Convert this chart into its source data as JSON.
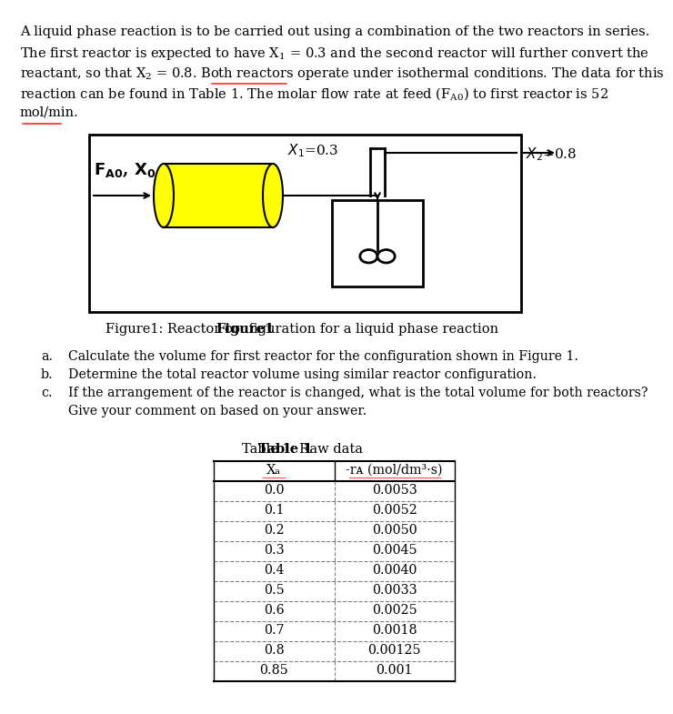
{
  "paragraph": "A liquid phase reaction is to be carried out using a combination of the two reactors in series. The first reactor is expected to have X₁ = 0.3 and the second reactor will further convert the reactant, so that X₂ = 0.8. Both reactors operate under isothermal conditions. The data for this reaction can be found in Table 1. The molar flow rate at feed (Fᴀ₀) to first reactor is 52 mol/min.",
  "figure_caption": "Figure1: Reactor configuration for a liquid phase reaction",
  "questions": [
    "a.\tCalculate the volume for first reactor for the configuration shown in Figure 1.",
    "b.\tDetermine the total reactor volume using similar reactor configuration.",
    "c.\tIf the arrangement of the reactor is changed, what is the total volume for both reactors?\n\tGive your comment on based on your answer."
  ],
  "table_title": "Table 1: Raw data",
  "col1_header": "Xₐ",
  "col2_header": "-rᴀ (mol/dm³·s)",
  "xa_values": [
    "0.0",
    "0.1",
    "0.2",
    "0.3",
    "0.4",
    "0.5",
    "0.6",
    "0.7",
    "0.8",
    "0.85"
  ],
  "ra_values": [
    "0.0053",
    "0.0052",
    "0.0050",
    "0.0045",
    "0.0040",
    "0.0033",
    "0.0025",
    "0.0018",
    "0.00125",
    "0.001"
  ],
  "bg_color": "#ffffff",
  "text_color": "#000000",
  "reactor_fill": "#ffff00",
  "reactor_edge": "#000000",
  "cstr_fill": "#ffffff",
  "cstr_edge": "#000000"
}
